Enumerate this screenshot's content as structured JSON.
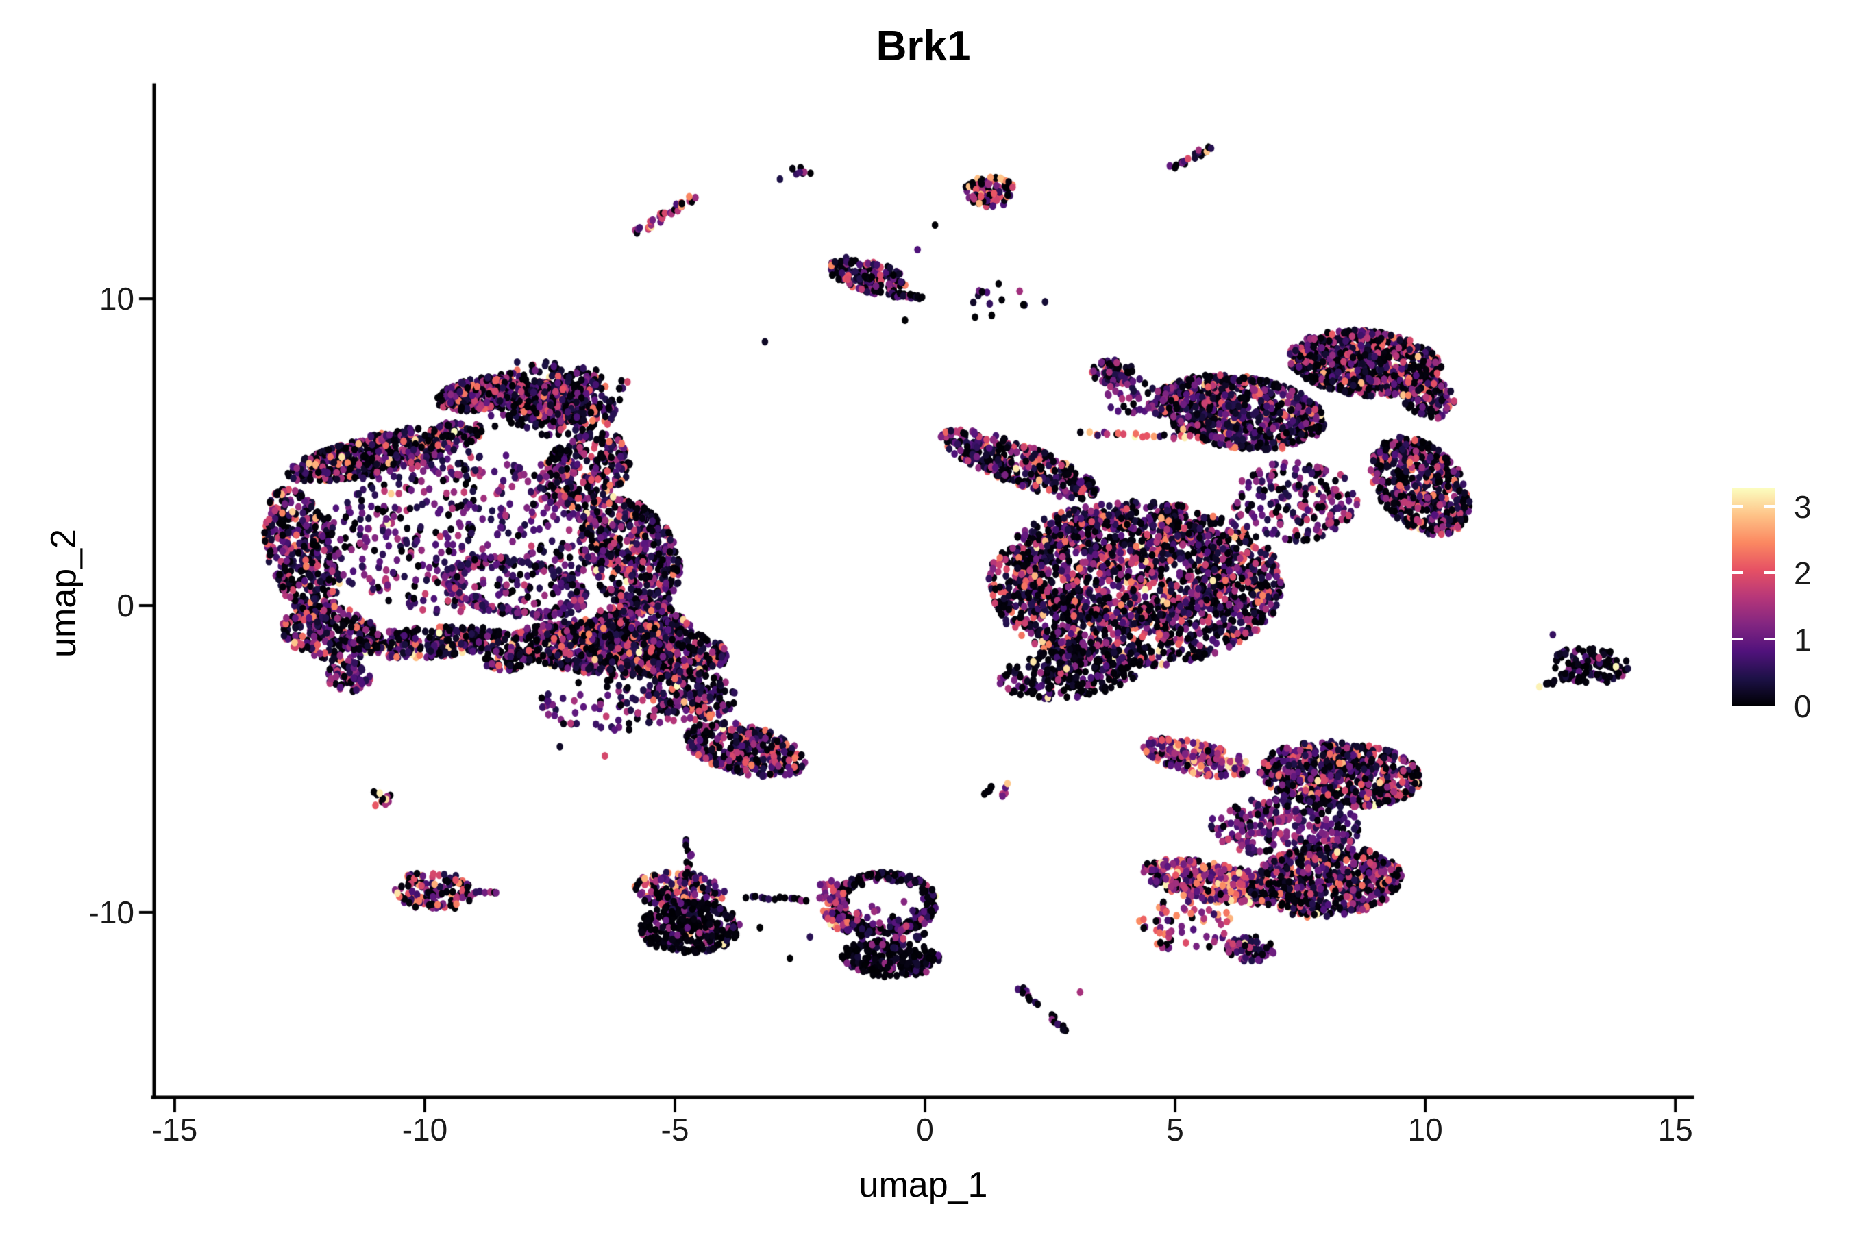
{
  "chart_data": {
    "type": "scatter",
    "title": "Brk1",
    "xlabel": "umap_1",
    "ylabel": "umap_2",
    "xlim": [
      -15.41,
      15.34
    ],
    "ylim": [
      -16.03,
      16.88
    ],
    "grid": false,
    "x_ticks": [
      {
        "v": -15,
        "label": "-15"
      },
      {
        "v": -10,
        "label": "-10"
      },
      {
        "v": -5,
        "label": "-5"
      },
      {
        "v": 0,
        "label": "0"
      },
      {
        "v": 5,
        "label": "5"
      },
      {
        "v": 10,
        "label": "10"
      },
      {
        "v": 15,
        "label": "15"
      }
    ],
    "y_ticks": [
      {
        "v": 10,
        "label": "10"
      },
      {
        "v": 0,
        "label": "0"
      },
      {
        "v": -10,
        "label": "-10"
      }
    ],
    "legend": {
      "position": "right",
      "vmax": 3.27,
      "ticks": [
        {
          "v": 3,
          "label": "3"
        },
        {
          "v": 2,
          "label": "2"
        },
        {
          "v": 1,
          "label": "1"
        },
        {
          "v": 0,
          "label": "0"
        }
      ]
    },
    "colormap": {
      "name": "magma",
      "stops": [
        "#000004",
        "#1d1147",
        "#51127c",
        "#832681",
        "#b73779",
        "#e65164",
        "#fb8861",
        "#fec287",
        "#fcfdbf"
      ]
    },
    "point": {
      "rx": 4.8,
      "ry": 5.6
    },
    "palettes": {
      "std": {
        "p0": 0.34,
        "base": 0.2,
        "range": 2.25,
        "pow": 1.7,
        "pHot": 0.025
      },
      "purple": {
        "p0": 0.22,
        "base": 0.35,
        "range": 1.5,
        "pow": 1.4,
        "pHot": 0.01
      },
      "pink": {
        "p0": 0.13,
        "base": 0.55,
        "range": 2.1,
        "pow": 1.15,
        "pHot": 0.06
      },
      "dark": {
        "p0": 0.55,
        "base": 0.12,
        "range": 1.8,
        "pow": 2.1,
        "pHot": 0.012
      },
      "vdark": {
        "p0": 0.62,
        "base": 0.1,
        "range": 1.6,
        "pow": 2.3,
        "pHot": 0.01
      },
      "bright": {
        "p0": 0.3,
        "base": 0.35,
        "range": 2.5,
        "pow": 1.2,
        "pHot": 0.05
      }
    },
    "clusters": [
      {
        "name": "big-left-top-lobe",
        "n": 600,
        "x": -7.4,
        "y": 6.7,
        "rx": 1.25,
        "ry": 1.15,
        "rot": -15,
        "d": "g",
        "p": "std"
      },
      {
        "name": "big-left-top-spur",
        "n": 300,
        "x": -8.9,
        "y": 6.9,
        "rx": 0.9,
        "ry": 0.5,
        "rot": 20,
        "d": "u",
        "p": "std"
      },
      {
        "name": "big-left-topleft-edge",
        "n": 520,
        "x": -10.8,
        "y": 5.0,
        "rx": 2.1,
        "ry": 0.6,
        "rot": 22,
        "d": "u",
        "p": "std"
      },
      {
        "name": "big-left-left-edge",
        "n": 400,
        "x": -12.45,
        "y": 1.7,
        "rx": 0.7,
        "ry": 2.2,
        "rot": 8,
        "d": "u",
        "p": "std"
      },
      {
        "name": "big-left-bl-corner",
        "n": 240,
        "x": -11.9,
        "y": -0.9,
        "rx": 1.0,
        "ry": 0.85,
        "rot": -35,
        "d": "u",
        "p": "std"
      },
      {
        "name": "big-left-tail-tip",
        "n": 70,
        "x": -11.5,
        "y": -2.3,
        "rx": 0.45,
        "ry": 0.5,
        "rot": 0,
        "d": "u",
        "p": "purple"
      },
      {
        "name": "big-left-bottom-band",
        "n": 280,
        "x": -9.9,
        "y": -1.2,
        "rx": 1.6,
        "ry": 0.5,
        "rot": 6,
        "d": "u",
        "p": "std"
      },
      {
        "name": "big-left-interior",
        "n": 500,
        "x": -9.2,
        "y": 2.4,
        "rx": 2.9,
        "ry": 2.7,
        "rot": 0,
        "d": "u",
        "p": "purple"
      },
      {
        "name": "big-left-right-mid",
        "n": 500,
        "x": -5.9,
        "y": 1.7,
        "rx": 0.95,
        "ry": 1.9,
        "rot": 12,
        "d": "u",
        "p": "std"
      },
      {
        "name": "big-left-neck",
        "n": 260,
        "x": -6.8,
        "y": 4.4,
        "rx": 0.85,
        "ry": 1.3,
        "rot": -25,
        "d": "u",
        "p": "std"
      },
      {
        "name": "big-left-bottom-right",
        "n": 330,
        "x": -5.7,
        "y": -0.8,
        "rx": 1.05,
        "ry": 0.95,
        "rot": 0,
        "d": "u",
        "p": "std"
      },
      {
        "name": "big-left-inner-arc",
        "n": 220,
        "x": -8.2,
        "y": 0.6,
        "rx": 1.5,
        "ry": 0.9,
        "rot": -20,
        "d": "e",
        "p": "purple"
      },
      {
        "name": "mid-left-top-band",
        "n": 850,
        "x": -6.1,
        "y": -1.4,
        "rx": 2.2,
        "ry": 0.9,
        "rot": -7,
        "d": "u",
        "p": "std"
      },
      {
        "name": "mid-left-tip",
        "n": 70,
        "x": -8.35,
        "y": -1.7,
        "rx": 0.5,
        "ry": 0.4,
        "rot": 30,
        "d": "u",
        "p": "std"
      },
      {
        "name": "mid-left-bridge",
        "n": 200,
        "x": -4.7,
        "y": -2.9,
        "rx": 0.95,
        "ry": 0.8,
        "rot": -30,
        "d": "u",
        "p": "std"
      },
      {
        "name": "mid-left-boot",
        "n": 360,
        "x": -3.6,
        "y": -4.7,
        "rx": 1.3,
        "ry": 0.75,
        "rot": -28,
        "d": "u",
        "p": "std"
      },
      {
        "name": "mid-left-sparse",
        "n": 80,
        "x": -6.2,
        "y": -3.2,
        "rx": 1.5,
        "ry": 0.9,
        "rot": 0,
        "d": "u",
        "p": "purple"
      },
      {
        "name": "top-streak-a",
        "line": true,
        "x1": -5.75,
        "y1": 12.15,
        "x2": -4.65,
        "y2": 13.3,
        "w": 0.1,
        "n": 32,
        "p": "pink"
      },
      {
        "name": "top-pair-b",
        "n": 7,
        "x": -2.45,
        "y": 14.2,
        "rx": 0.22,
        "ry": 0.17,
        "rot": 0,
        "d": "u",
        "p": "std"
      },
      {
        "name": "top-clump-c",
        "n": 85,
        "x": 1.3,
        "y": 13.5,
        "rx": 0.52,
        "ry": 0.5,
        "rot": 0,
        "d": "u",
        "p": "bright"
      },
      {
        "name": "top-streak-d",
        "line": true,
        "x1": 4.95,
        "y1": 14.3,
        "x2": 5.75,
        "y2": 14.95,
        "w": 0.09,
        "n": 17,
        "p": "std"
      },
      {
        "name": "top-cluster-e",
        "n": 150,
        "x": -1.15,
        "y": 10.75,
        "rx": 0.85,
        "ry": 0.5,
        "rot": -30,
        "d": "u",
        "p": "std"
      },
      {
        "name": "top-cluster-e-arm",
        "line": true,
        "x1": -0.7,
        "y1": 10.15,
        "x2": -0.05,
        "y2": 10.05,
        "w": 0.08,
        "n": 22,
        "p": "dark"
      },
      {
        "name": "top-sparse-f",
        "n": 12,
        "x": 1.5,
        "y": 9.9,
        "rx": 0.55,
        "ry": 0.6,
        "rot": 0,
        "d": "u",
        "p": "std"
      },
      {
        "name": "right-top-lobe",
        "n": 800,
        "x": 8.8,
        "y": 7.9,
        "rx": 1.55,
        "ry": 1.05,
        "rot": -12,
        "d": "u",
        "p": "std"
      },
      {
        "name": "right-top-spur",
        "n": 130,
        "x": 10.05,
        "y": 6.8,
        "rx": 0.5,
        "ry": 0.75,
        "rot": 20,
        "d": "u",
        "p": "std"
      },
      {
        "name": "right-east-lobe",
        "n": 520,
        "x": 9.9,
        "y": 3.9,
        "rx": 0.9,
        "ry": 1.65,
        "rot": 18,
        "d": "u",
        "p": "std"
      },
      {
        "name": "right-upper-band",
        "n": 780,
        "x": 6.3,
        "y": 6.3,
        "rx": 1.75,
        "ry": 1.15,
        "rot": -18,
        "d": "u",
        "p": "std"
      },
      {
        "name": "right-small-clump",
        "n": 70,
        "x": 3.75,
        "y": 7.6,
        "rx": 0.42,
        "ry": 0.4,
        "rot": 0,
        "d": "u",
        "p": "std"
      },
      {
        "name": "right-clump-sparse",
        "n": 45,
        "x": 4.4,
        "y": 6.8,
        "rx": 0.85,
        "ry": 0.6,
        "rot": 0,
        "d": "u",
        "p": "purple"
      },
      {
        "name": "right-left-arm",
        "n": 360,
        "x": 1.9,
        "y": 4.6,
        "rx": 1.85,
        "ry": 0.6,
        "rot": -33,
        "d": "u",
        "p": "std"
      },
      {
        "name": "right-dotted-line",
        "line": true,
        "x1": 3.15,
        "y1": 5.6,
        "x2": 5.9,
        "y2": 5.45,
        "w": 0.07,
        "n": 26,
        "p": "pink"
      },
      {
        "name": "right-main-blob",
        "n": 1900,
        "x": 4.2,
        "y": 0.7,
        "rx": 2.95,
        "ry": 2.7,
        "rot": 0,
        "d": "u",
        "p": "std"
      },
      {
        "name": "right-main-ring",
        "n": 420,
        "x": 4.0,
        "y": 1.2,
        "rx": 2.2,
        "ry": 1.8,
        "rot": 0,
        "d": "e",
        "p": "std"
      },
      {
        "name": "right-bottom-tip",
        "n": 260,
        "x": 2.9,
        "y": -2.2,
        "rx": 1.45,
        "ry": 0.8,
        "rot": 12,
        "d": "u",
        "p": "dark"
      },
      {
        "name": "right-bridge-sparse",
        "n": 190,
        "x": 7.4,
        "y": 3.4,
        "rx": 1.25,
        "ry": 1.3,
        "rot": 0,
        "d": "u",
        "p": "purple"
      },
      {
        "name": "br-upper-arm",
        "n": 210,
        "x": 5.4,
        "y": -4.95,
        "rx": 1.15,
        "ry": 0.5,
        "rot": -22,
        "d": "u",
        "p": "pink"
      },
      {
        "name": "br-upper-blob",
        "n": 680,
        "x": 8.3,
        "y": -5.5,
        "rx": 1.65,
        "ry": 1.05,
        "rot": -8,
        "d": "u",
        "p": "std"
      },
      {
        "name": "br-mid-sparse",
        "n": 250,
        "x": 7.2,
        "y": -7.2,
        "rx": 1.5,
        "ry": 1.05,
        "rot": 0,
        "d": "u",
        "p": "purple"
      },
      {
        "name": "br-left-wing",
        "n": 320,
        "x": 5.7,
        "y": -9.0,
        "rx": 1.45,
        "ry": 0.62,
        "rot": -18,
        "d": "u",
        "p": "pink"
      },
      {
        "name": "br-lower-blob",
        "n": 620,
        "x": 8.0,
        "y": -9.0,
        "rx": 1.55,
        "ry": 1.15,
        "rot": 10,
        "d": "u",
        "p": "std"
      },
      {
        "name": "br-small-clump",
        "n": 85,
        "x": 6.5,
        "y": -11.2,
        "rx": 0.48,
        "ry": 0.42,
        "rot": -20,
        "d": "u",
        "p": "purple"
      },
      {
        "name": "br-sparse-bl",
        "n": 60,
        "x": 5.2,
        "y": -10.4,
        "rx": 0.95,
        "ry": 0.85,
        "rot": 0,
        "d": "u",
        "p": "pink"
      },
      {
        "name": "far-right-blob",
        "n": 110,
        "x": 13.3,
        "y": -1.95,
        "rx": 0.78,
        "ry": 0.58,
        "rot": -12,
        "d": "u",
        "p": "dark"
      },
      {
        "name": "far-right-tail",
        "line": true,
        "x1": 12.3,
        "y1": -2.65,
        "x2": 12.85,
        "y2": -2.25,
        "w": 0.07,
        "n": 11,
        "p": "dark"
      },
      {
        "name": "left-tiny-x",
        "n": 14,
        "x": -10.9,
        "y": -6.3,
        "rx": 0.3,
        "ry": 0.26,
        "rot": 40,
        "d": "u",
        "p": "std"
      },
      {
        "name": "left-small-blob",
        "n": 130,
        "x": -9.8,
        "y": -9.3,
        "rx": 0.8,
        "ry": 0.65,
        "rot": -10,
        "d": "u",
        "p": "bright"
      },
      {
        "name": "left-small-tail",
        "line": true,
        "x1": -9.0,
        "y1": -9.35,
        "x2": -8.55,
        "y2": -9.4,
        "w": 0.05,
        "n": 6,
        "p": "pink"
      },
      {
        "name": "bcl-stem",
        "line": true,
        "x1": -4.75,
        "y1": -7.6,
        "x2": -4.7,
        "y2": -8.7,
        "w": 0.06,
        "n": 10,
        "p": "dark"
      },
      {
        "name": "bcl-top",
        "n": 170,
        "x": -4.9,
        "y": -9.3,
        "rx": 0.95,
        "ry": 0.6,
        "rot": -10,
        "d": "u",
        "p": "bright"
      },
      {
        "name": "bcl-main",
        "n": 330,
        "x": -4.7,
        "y": -10.5,
        "rx": 1.0,
        "ry": 0.85,
        "rot": 5,
        "d": "u",
        "p": "vdark"
      },
      {
        "name": "bc-connector",
        "line": true,
        "x1": -3.55,
        "y1": -9.5,
        "x2": -2.35,
        "y2": -9.6,
        "w": 0.05,
        "n": 14,
        "p": "dark"
      },
      {
        "name": "bc-ring",
        "n": 270,
        "x": -0.8,
        "y": -9.7,
        "rx": 1.05,
        "ry": 1.0,
        "rot": 0,
        "d": "e",
        "p": "vdark"
      },
      {
        "name": "bc-pink-edge",
        "n": 70,
        "x": -1.8,
        "y": -9.8,
        "rx": 0.28,
        "ry": 0.95,
        "rot": 10,
        "d": "u",
        "p": "pink"
      },
      {
        "name": "bc-bottom-band",
        "n": 230,
        "x": -0.7,
        "y": -11.5,
        "rx": 1.0,
        "ry": 0.6,
        "rot": -5,
        "d": "u",
        "p": "vdark"
      },
      {
        "name": "bc-inner-sparse",
        "n": 60,
        "x": -0.7,
        "y": -10.4,
        "rx": 0.8,
        "ry": 0.8,
        "rot": 0,
        "d": "u",
        "p": "purple"
      },
      {
        "name": "bottom-streak-1",
        "line": true,
        "x1": 1.9,
        "y1": -12.45,
        "x2": 2.2,
        "y2": -12.95,
        "w": 0.06,
        "n": 9,
        "p": "dark"
      },
      {
        "name": "bottom-streak-2",
        "line": true,
        "x1": 2.5,
        "y1": -13.35,
        "x2": 2.8,
        "y2": -13.85,
        "w": 0.06,
        "n": 9,
        "p": "dark"
      },
      {
        "name": "tiny-center",
        "n": 9,
        "x": 1.4,
        "y": -6.05,
        "rx": 0.3,
        "ry": 0.22,
        "rot": 35,
        "d": "u",
        "p": "dark"
      }
    ],
    "stray_points": [
      [
        -2.9,
        13.9,
        0.4
      ],
      [
        0.2,
        12.4,
        0.0
      ],
      [
        -0.15,
        11.6,
        0.8
      ],
      [
        2.4,
        9.9,
        0.3
      ],
      [
        1.0,
        9.4,
        0.0
      ],
      [
        -2.7,
        -11.5,
        0.0
      ],
      [
        -2.3,
        -10.8,
        0.5
      ],
      [
        -3.3,
        -10.5,
        0.0
      ],
      [
        1.65,
        -5.8,
        2.9
      ],
      [
        -6.4,
        -4.9,
        1.9
      ],
      [
        -7.3,
        -4.6,
        0.2
      ],
      [
        12.55,
        -0.95,
        0.6
      ],
      [
        3.1,
        -12.6,
        1.5
      ],
      [
        -3.2,
        8.6,
        0.2
      ],
      [
        -0.4,
        9.3,
        0.0
      ]
    ]
  }
}
